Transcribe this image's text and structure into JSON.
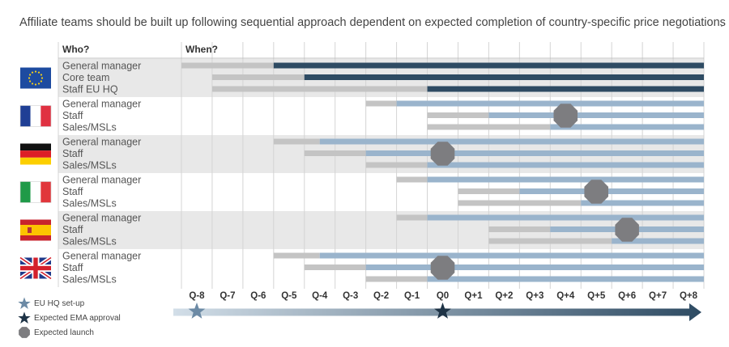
{
  "title": "Affiliate teams should be built up following sequential approach dependent on expected completion of country-specific price negotiations",
  "trailing_mark": ".",
  "chart_data": {
    "type": "gantt",
    "column_headers": {
      "who": "Who?",
      "when": "When?"
    },
    "quarters": [
      "Q-8",
      "Q-7",
      "Q-6",
      "Q-5",
      "Q-4",
      "Q-3",
      "Q-2",
      "Q-1",
      "Q0",
      "Q+1",
      "Q+2",
      "Q+3",
      "Q+4",
      "Q+5",
      "Q+6",
      "Q+7",
      "Q+8"
    ],
    "groups": [
      {
        "flag": "eu-flag",
        "shaded": true,
        "launch": null,
        "rows": [
          {
            "role": "General manager",
            "grey_start": "Q-8",
            "dark_start": "Q-5",
            "end": "Q+8",
            "style": "dark"
          },
          {
            "role": "Core team",
            "grey_start": "Q-7",
            "dark_start": "Q-4",
            "end": "Q+8",
            "style": "dark"
          },
          {
            "role": "Staff EU HQ",
            "grey_start": "Q-7",
            "dark_start": "Q0",
            "end": "Q+8",
            "style": "dark"
          }
        ]
      },
      {
        "flag": "france-flag",
        "shaded": false,
        "launch": "Q+4",
        "rows": [
          {
            "role": "General manager",
            "grey_start": "Q-2",
            "dark_start": "Q-1",
            "end": "Q+8",
            "style": "light"
          },
          {
            "role": "Staff",
            "grey_start": "Q0",
            "dark_start": "Q+2",
            "end": "Q+8",
            "style": "light"
          },
          {
            "role": "Sales/MSLs",
            "grey_start": "Q0",
            "dark_start": "Q+4",
            "end": "Q+8",
            "style": "light"
          }
        ]
      },
      {
        "flag": "germany-flag",
        "shaded": true,
        "launch": "Q0",
        "rows": [
          {
            "role": "General manager",
            "grey_start": "Q-5",
            "dark_start": "Q-3.5",
            "end": "Q+8",
            "style": "light"
          },
          {
            "role": "Staff",
            "grey_start": "Q-4",
            "dark_start": "Q-2",
            "end": "Q+8",
            "style": "light"
          },
          {
            "role": "Sales/MSLs",
            "grey_start": "Q-2",
            "dark_start": "Q0",
            "end": "Q+8",
            "style": "light"
          }
        ]
      },
      {
        "flag": "italy-flag",
        "shaded": false,
        "launch": "Q+5",
        "rows": [
          {
            "role": "General manager",
            "grey_start": "Q-1",
            "dark_start": "Q0",
            "end": "Q+8",
            "style": "light"
          },
          {
            "role": "Staff",
            "grey_start": "Q+1",
            "dark_start": "Q+3",
            "end": "Q+8",
            "style": "light"
          },
          {
            "role": "Sales/MSLs",
            "grey_start": "Q+1",
            "dark_start": "Q+5",
            "end": "Q+8",
            "style": "light"
          }
        ]
      },
      {
        "flag": "spain-flag",
        "shaded": true,
        "launch": "Q+6",
        "rows": [
          {
            "role": "General manager",
            "grey_start": "Q-1",
            "dark_start": "Q0",
            "end": "Q+8",
            "style": "light"
          },
          {
            "role": "Staff",
            "grey_start": "Q+2",
            "dark_start": "Q+4",
            "end": "Q+8",
            "style": "light"
          },
          {
            "role": "Sales/MSLs",
            "grey_start": "Q+2",
            "dark_start": "Q+6",
            "end": "Q+8",
            "style": "light"
          }
        ]
      },
      {
        "flag": "uk-flag",
        "shaded": false,
        "launch": "Q0",
        "rows": [
          {
            "role": "General manager",
            "grey_start": "Q-5",
            "dark_start": "Q-3.5",
            "end": "Q+8",
            "style": "light"
          },
          {
            "role": "Staff",
            "grey_start": "Q-4",
            "dark_start": "Q-2",
            "end": "Q+8",
            "style": "light"
          },
          {
            "role": "Sales/MSLs",
            "grey_start": "Q-2",
            "dark_start": "Q0",
            "end": "Q+8",
            "style": "light"
          }
        ]
      }
    ],
    "milestones": [
      {
        "marker": "eu-hq-setup",
        "quarter": "Q-8"
      },
      {
        "marker": "expected-ema-approval",
        "quarter": "Q0"
      }
    ],
    "colors": {
      "grey": "#c4c4c4",
      "dark": "#2e4b63",
      "light": "#9ab4cc",
      "launch": "#7d7d80",
      "shade": "#e8e8e8"
    }
  },
  "legend": {
    "eu_hq": "EU HQ set-up",
    "ema": "Expected EMA approval",
    "launch": "Expected launch"
  }
}
